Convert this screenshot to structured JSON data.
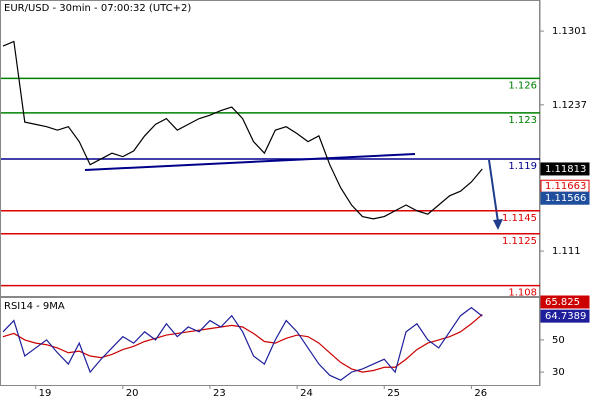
{
  "header": "EUR/USD - 30min - 07:00:32 (UTC+2)",
  "chart_data": [
    {
      "type": "line",
      "ylim": [
        1.1071,
        1.1328
      ],
      "xlim": [
        0,
        49.3
      ],
      "yticks": [
        1.1301,
        1.1237,
        1.111
      ],
      "x": [
        0,
        1,
        2,
        3,
        4,
        5,
        6,
        7,
        8,
        9,
        10,
        11,
        12,
        13,
        14,
        15,
        16,
        17,
        18,
        19,
        20,
        21,
        22,
        23,
        24,
        25,
        26,
        27,
        28,
        29,
        30,
        31,
        32,
        33,
        34,
        35,
        36,
        37,
        38,
        39,
        40,
        41,
        42,
        43,
        44
      ],
      "series": [
        {
          "color": "#000000",
          "values": [
            1.1288,
            1.1292,
            1.1222,
            1.122,
            1.1218,
            1.1215,
            1.1218,
            1.1205,
            1.1185,
            1.119,
            1.1195,
            1.1192,
            1.1197,
            1.121,
            1.122,
            1.1225,
            1.1215,
            1.122,
            1.1225,
            1.1228,
            1.1232,
            1.1235,
            1.1225,
            1.1205,
            1.1195,
            1.1215,
            1.1218,
            1.1212,
            1.1205,
            1.121,
            1.1185,
            1.1165,
            1.115,
            1.114,
            1.1138,
            1.114,
            1.1145,
            1.115,
            1.1145,
            1.1142,
            1.115,
            1.1158,
            1.1162,
            1.117,
            1.11813
          ]
        }
      ],
      "levels": [
        {
          "value": 1.126,
          "color": "#008000"
        },
        {
          "value": 1.123,
          "color": "#008000"
        },
        {
          "value": 1.119,
          "color": "#00008b"
        },
        {
          "value": 1.1145,
          "color": "#dd0000"
        },
        {
          "value": 1.1125,
          "color": "#dd0000"
        },
        {
          "value": 1.108,
          "color": "#dd0000"
        }
      ],
      "price_labels": [
        {
          "value": 1.11663,
          "color": "#dd0000"
        },
        {
          "value": 1.11566,
          "color": "#1f4e9c"
        }
      ]
    },
    {
      "type": "line",
      "title": "RSI14 - 9MA",
      "ylim": [
        22,
        76
      ],
      "xlim": [
        0,
        49.3
      ],
      "yticks": [
        50,
        30
      ],
      "x": [
        0,
        1,
        2,
        3,
        4,
        5,
        6,
        7,
        8,
        9,
        10,
        11,
        12,
        13,
        14,
        15,
        16,
        17,
        18,
        19,
        20,
        21,
        22,
        23,
        24,
        25,
        26,
        27,
        28,
        29,
        30,
        31,
        32,
        33,
        34,
        35,
        36,
        37,
        38,
        39,
        40,
        41,
        42,
        43,
        44
      ],
      "xticks": [
        {
          "value": 3,
          "label": "19"
        },
        {
          "value": 11,
          "label": "20"
        },
        {
          "value": 19,
          "label": "23"
        },
        {
          "value": 27,
          "label": "24"
        },
        {
          "value": 35,
          "label": "25"
        },
        {
          "value": 43,
          "label": "26"
        }
      ],
      "series": [
        {
          "color": "#cc0000",
          "values": [
            52,
            54,
            50,
            48,
            47,
            45,
            42,
            43,
            40,
            39,
            41,
            44,
            46,
            49,
            51,
            53,
            54,
            55,
            56,
            57,
            58,
            59,
            58,
            54,
            49,
            48,
            51,
            53,
            52,
            48,
            42,
            36,
            32,
            30,
            31,
            33,
            33,
            38,
            44,
            48,
            50,
            52,
            55,
            60,
            65.825
          ]
        },
        {
          "color": "#1f1f9c",
          "values": [
            55,
            62,
            40,
            45,
            50,
            42,
            35,
            48,
            30,
            38,
            45,
            52,
            48,
            55,
            50,
            60,
            52,
            58,
            55,
            62,
            58,
            65,
            55,
            40,
            35,
            50,
            62,
            55,
            45,
            35,
            28,
            25,
            30,
            32,
            35,
            38,
            30,
            55,
            60,
            50,
            45,
            55,
            65,
            70,
            64.7389
          ]
        }
      ]
    }
  ]
}
